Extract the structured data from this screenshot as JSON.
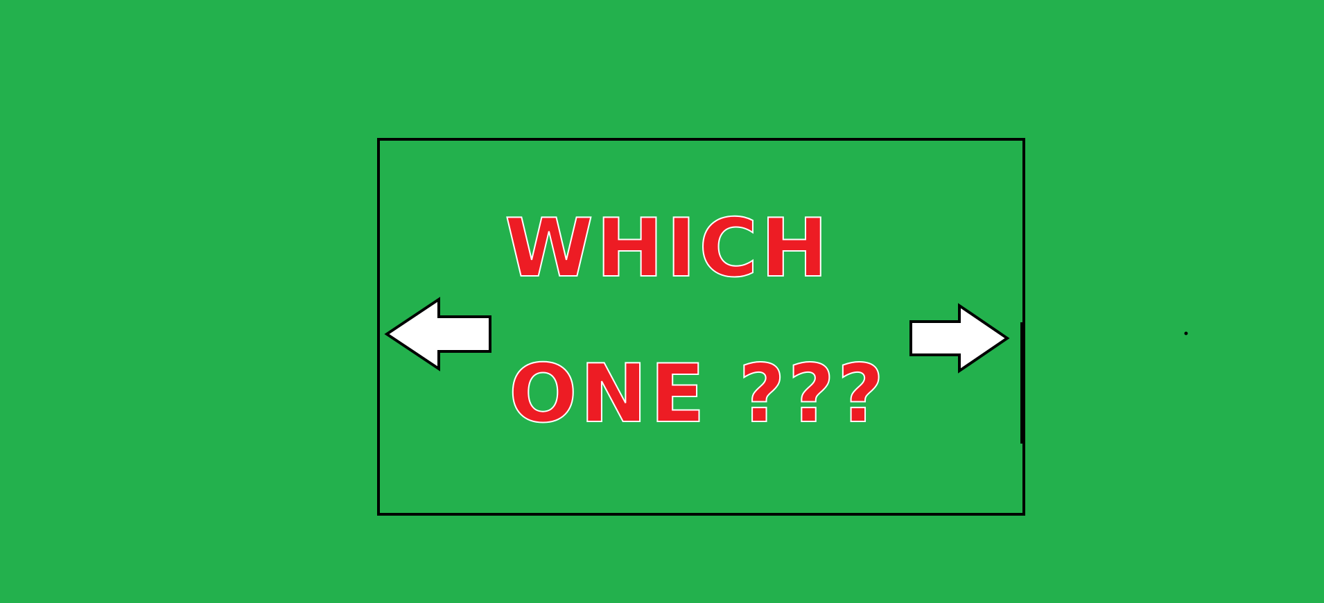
{
  "scene": {
    "title_line1": "WHICH",
    "title_line2": "ONE ???",
    "left_arrow_icon": "arrow-left-icon",
    "right_arrow_icon": "arrow-right-icon"
  },
  "colors": {
    "background": "#23b14d",
    "frame": "#000000",
    "title": "#ed1c24",
    "arrow_fill": "#ffffff",
    "arrow_stroke": "#000000"
  }
}
